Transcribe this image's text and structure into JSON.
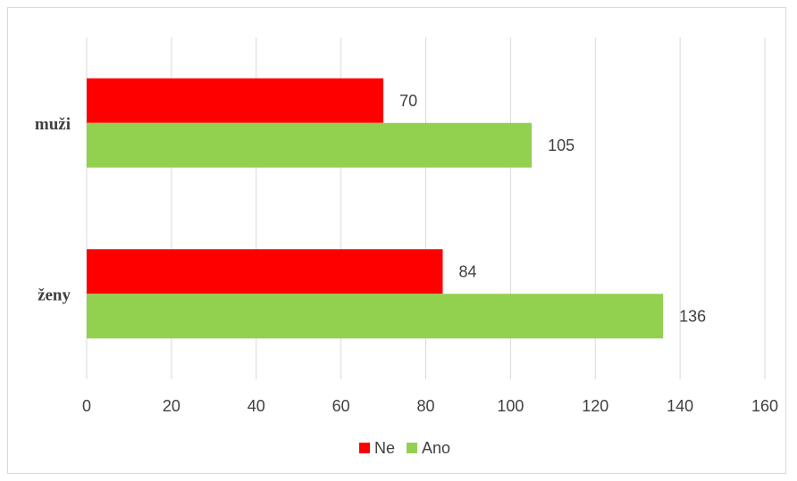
{
  "chart_data": {
    "type": "bar",
    "orientation": "horizontal",
    "categories": [
      "muži",
      "ženy"
    ],
    "series": [
      {
        "name": "Ne",
        "color": "#ff0000",
        "values": [
          70,
          84
        ]
      },
      {
        "name": "Ano",
        "color": "#92d050",
        "values": [
          105,
          136
        ]
      }
    ],
    "xlim": [
      0,
      160
    ],
    "xticks": [
      0,
      20,
      40,
      60,
      80,
      100,
      120,
      140,
      160
    ],
    "grid": true,
    "legend": "bottom",
    "data_labels": true
  }
}
